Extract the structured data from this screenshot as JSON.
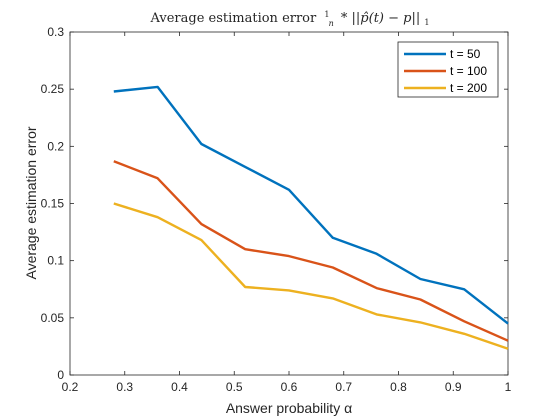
{
  "chart_data": {
    "type": "line",
    "title": "Average estimation error 1/n * ||p̂(t) − p||₁",
    "title_parts": {
      "prefix": "Average estimation error",
      "frac_num": "1",
      "frac_den": "n",
      "norm_expr": "* ||p̂(t) − p||",
      "subscript": "1"
    },
    "xlabel": "Answer probability α",
    "ylabel": "Average estimation error",
    "xlim": [
      0.2,
      1
    ],
    "ylim": [
      0,
      0.3
    ],
    "xticks": [
      0.2,
      0.3,
      0.4,
      0.5,
      0.6,
      0.7,
      0.8,
      0.9,
      1
    ],
    "xtick_labels": [
      "0.2",
      "0.3",
      "0.4",
      "0.5",
      "0.6",
      "0.7",
      "0.8",
      "0.9",
      "1"
    ],
    "yticks": [
      0,
      0.05,
      0.1,
      0.15,
      0.2,
      0.25,
      0.3
    ],
    "ytick_labels": [
      "0",
      "0.05",
      "0.1",
      "0.15",
      "0.2",
      "0.25",
      "0.3"
    ],
    "grid": false,
    "legend_position": "top-right",
    "x": [
      0.28,
      0.36,
      0.44,
      0.52,
      0.6,
      0.68,
      0.76,
      0.84,
      0.92,
      1.0
    ],
    "series": [
      {
        "name": "t = 50",
        "color": "#0072BD",
        "values": [
          0.248,
          0.252,
          0.202,
          0.182,
          0.162,
          0.12,
          0.106,
          0.084,
          0.075,
          0.045
        ]
      },
      {
        "name": "t = 100",
        "color": "#D95319",
        "values": [
          0.187,
          0.172,
          0.132,
          0.11,
          0.104,
          0.094,
          0.076,
          0.066,
          0.047,
          0.03
        ]
      },
      {
        "name": "t = 200",
        "color": "#EDB120",
        "values": [
          0.15,
          0.138,
          0.118,
          0.077,
          0.074,
          0.067,
          0.053,
          0.046,
          0.036,
          0.023
        ]
      }
    ]
  }
}
